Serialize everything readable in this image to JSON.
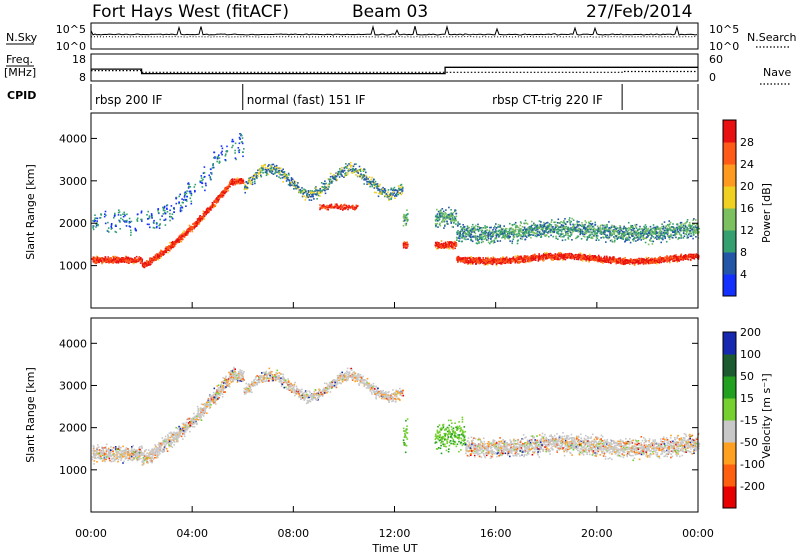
{
  "header": {
    "station": "Fort Hays West (fitACF)",
    "beam": "Beam 03",
    "date": "27/Feb/2014"
  },
  "labels": {
    "nsky": "N.Sky",
    "nsearch": "N.Search",
    "freq": "Freq.",
    "freq_unit": "[MHz]",
    "nave": "Nave",
    "cpid": "CPID",
    "slant_range": "Slant Range [km]",
    "power_label": "Power [dB]",
    "velocity_label": "Velocity [m s⁻¹]"
  },
  "noise_axis": {
    "left_ticks": [
      "10^5",
      "10^0"
    ],
    "right_ticks": [
      "10^5",
      "10^0"
    ]
  },
  "freq_axis": {
    "left_ticks": [
      "18",
      "8"
    ],
    "right_ticks": [
      "60",
      "0"
    ]
  },
  "cpid_segments": [
    {
      "label": "rbsp 200 IF",
      "start_h": 0,
      "end_h": 6.0
    },
    {
      "label": "normal (fast) 151 IF",
      "start_h": 6.0,
      "end_h": 21.0
    },
    {
      "label": "rbsp CT-trig 220 IF",
      "start_h": 21.0,
      "end_h": 24
    }
  ],
  "chart_data": [
    {
      "type": "line",
      "panel": "noise",
      "series": [
        {
          "name": "N.Sky",
          "style": "solid"
        },
        {
          "name": "N.Search",
          "style": "dotted"
        }
      ]
    },
    {
      "type": "line",
      "panel": "frequency",
      "series": [
        {
          "name": "Freq.",
          "style": "solid",
          "segments": [
            {
              "x": [
                0,
                2.0
              ],
              "y_mhz": 13.5
            },
            {
              "x": [
                2.0,
                14.0
              ],
              "y_mhz": 11.0
            },
            {
              "x": [
                14.0,
                24
              ],
              "y_mhz": 14.5
            }
          ]
        },
        {
          "name": "Nave",
          "style": "dotted",
          "segments": [
            {
              "x": [
                0,
                2.0
              ],
              "y": 24
            },
            {
              "x": [
                2.0,
                21.0
              ],
              "y": 20
            },
            {
              "x": [
                21.0,
                24
              ],
              "y": 22
            }
          ]
        }
      ]
    },
    {
      "type": "heatmap",
      "panel": "power",
      "xlabel": "",
      "ylabel": "Slant Range [km]",
      "x_ticks": [
        "00:00",
        "04:00",
        "08:00",
        "12:00",
        "16:00",
        "20:00",
        "00:00"
      ],
      "y_ticks": [
        1000,
        2000,
        3000,
        4000
      ],
      "ylim": [
        0,
        4600
      ],
      "colorbar": {
        "label": "Power [dB]",
        "ticks": [
          4,
          8,
          12,
          16,
          20,
          24,
          28
        ]
      }
    },
    {
      "type": "heatmap",
      "panel": "velocity",
      "xlabel": "Time UT",
      "ylabel": "Slant Range [km]",
      "x_ticks": [
        "00:00",
        "04:00",
        "08:00",
        "12:00",
        "16:00",
        "20:00",
        "00:00"
      ],
      "y_ticks": [
        1000,
        2000,
        3000,
        4000
      ],
      "ylim": [
        0,
        4600
      ],
      "colorbar": {
        "label": "Velocity [m s⁻¹]",
        "ticks": [
          200,
          100,
          50,
          15,
          -15,
          -50,
          -100,
          -200
        ]
      }
    }
  ],
  "colors": {
    "power_scale": [
      "#1430ff",
      "#2456a8",
      "#34a070",
      "#7cc060",
      "#f0d020",
      "#ff9a20",
      "#ff5a18",
      "#e81010"
    ],
    "velocity_scale": [
      "#1628b0",
      "#1c5a30",
      "#22a020",
      "#76d030",
      "#c8c8c8",
      "#ffa020",
      "#ff6010",
      "#e80000"
    ]
  },
  "time_axis_label": "Time UT"
}
